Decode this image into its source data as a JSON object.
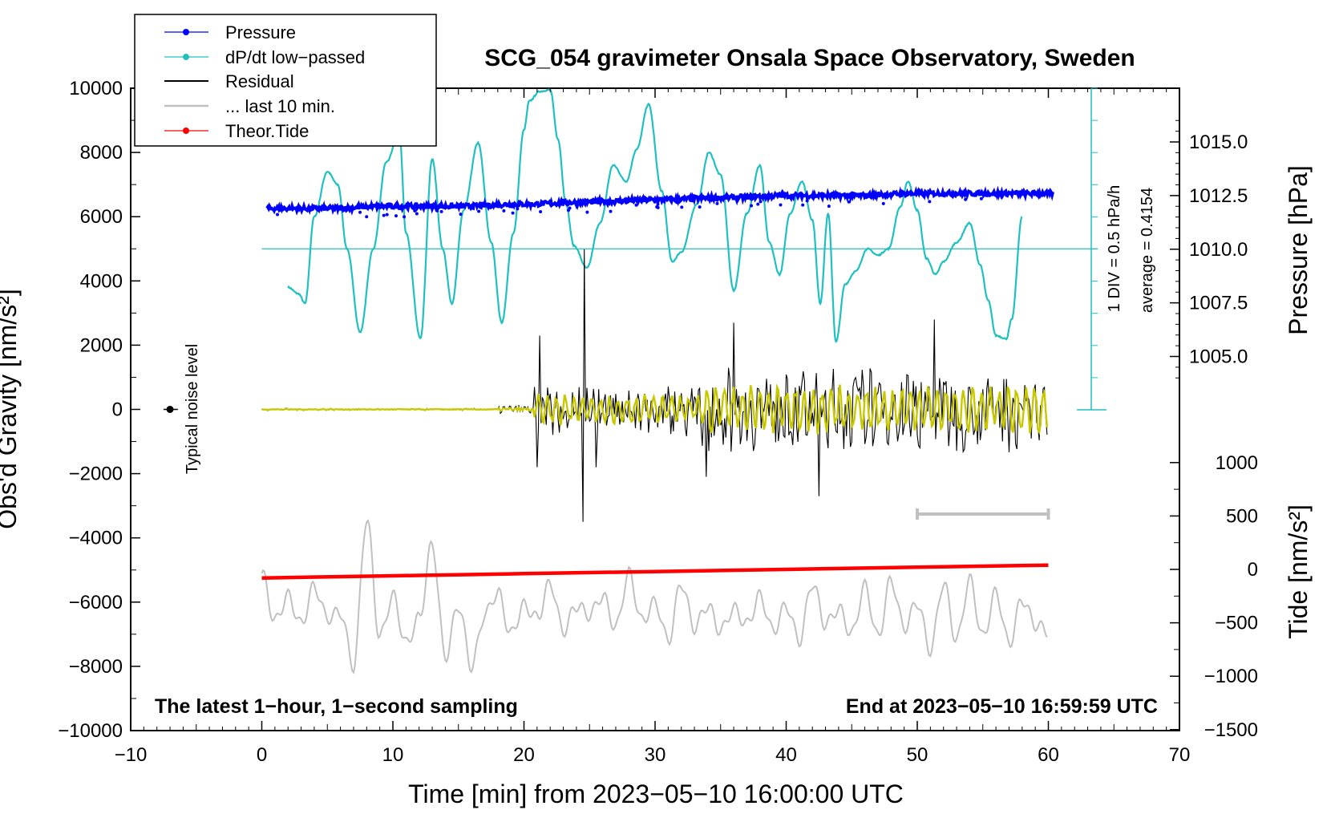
{
  "chart_data": {
    "type": "line",
    "title": "SCG_054 gravimeter Onsala Space Observatory, Sweden",
    "xlabel": "Time [min] from 2023−05−10 16:00:00 UTC",
    "ylabel_left": "Obs'd Gravity [nm/s²]",
    "ylabel_right_top": "Pressure [hPa]",
    "ylabel_right_bottom": "Tide [nm/s²]",
    "xlim": [
      -10,
      70
    ],
    "ylim_left": [
      -10000,
      10000
    ],
    "x_ticks": [
      "−10",
      "0",
      "10",
      "20",
      "30",
      "40",
      "50",
      "60",
      "70"
    ],
    "y_ticks_left": [
      "10000",
      "8000",
      "6000",
      "4000",
      "2000",
      "0",
      "−2000",
      "−4000",
      "−6000",
      "−8000",
      "−10000"
    ],
    "pressure_ticks": [
      "1015.0",
      "1012.5",
      "1010.0",
      "1007.5",
      "1005.0"
    ],
    "tide_ticks": [
      "1000",
      "500",
      "0",
      "−500",
      "−1000",
      "−1500"
    ],
    "legend": [
      "Pressure",
      "dP/dt low−passed",
      "Residual",
      "... last 10 min.",
      "Theor.Tide"
    ],
    "legend_position": "top-left",
    "annotations": {
      "div_note": "1 DIV = 0.5 hPa/h",
      "average_note": "average = 0.4154",
      "noise_label": "Typical noise level",
      "bottom_left": "The latest 1−hour, 1−second sampling",
      "bottom_right": "End at 2023−05−10 16:59:59 UTC"
    },
    "series": [
      {
        "name": "Pressure",
        "unit": "hPa",
        "x": [
          0,
          5,
          10,
          15,
          20,
          25,
          30,
          35,
          40,
          45,
          50,
          55,
          60
        ],
        "values": [
          1011.9,
          1011.9,
          1012.0,
          1012.0,
          1012.1,
          1012.2,
          1012.3,
          1012.4,
          1012.5,
          1012.5,
          1012.6,
          1012.6,
          1012.6
        ]
      },
      {
        "name": "dP/dt low−passed",
        "unit": "nm/s² (display)",
        "x": [
          2,
          2.8,
          3.3,
          4,
          5,
          5.8,
          6.5,
          7.5,
          8.5,
          9.5,
          10.5,
          11,
          12.1,
          13,
          13.8,
          14.5,
          15.4,
          16.5,
          17.5,
          18.3,
          19.2,
          20,
          20.4,
          21.2,
          22,
          22.6,
          23.2,
          23.8,
          24.8,
          25.8,
          26.8,
          27.8,
          28.6,
          29.5,
          30.5,
          31.3,
          32,
          33.2,
          34.1,
          35,
          36,
          37,
          38,
          38.7,
          39.5,
          40.3,
          41.2,
          42,
          42.6,
          43.2,
          43.8,
          44.5,
          45.3,
          46.2,
          47,
          47.8,
          48.7,
          49.3,
          50,
          50.7,
          51.4,
          52,
          53,
          54,
          54.8,
          55.4,
          56,
          56.8,
          57.2,
          58
        ],
        "values": [
          3800,
          3600,
          3300,
          6000,
          7400,
          7000,
          5000,
          2400,
          5000,
          7700,
          8600,
          5500,
          2200,
          7800,
          5000,
          3300,
          6200,
          8300,
          5200,
          2700,
          5500,
          8700,
          9600,
          9900,
          9950,
          8400,
          6400,
          5100,
          4400,
          5800,
          7600,
          7100,
          8100,
          9500,
          6800,
          4600,
          4900,
          6400,
          8000,
          7300,
          3700,
          6100,
          7600,
          5200,
          4200,
          6100,
          7100,
          5900,
          3300,
          6100,
          2100,
          3900,
          4300,
          5000,
          4800,
          5000,
          6300,
          7100,
          6200,
          4700,
          4200,
          4600,
          5200,
          5800,
          4500,
          3400,
          2300,
          2200,
          2800,
          6000
        ]
      },
      {
        "name": "Residual",
        "unit": "nm/s²",
        "x": [
          0,
          18,
          20.5,
          21,
          24.5,
          30,
          33,
          36,
          42.5,
          51,
          55,
          60
        ],
        "values": [
          0,
          0,
          0,
          -1800,
          -3500,
          -1000,
          -2200,
          2700,
          -2700,
          2800,
          -1500,
          -1300
        ]
      },
      {
        "name": "... last 10 min.",
        "unit": "nm/s² (display)",
        "x": [
          0,
          1,
          2,
          3,
          4,
          5,
          6,
          7,
          8,
          9,
          10,
          11,
          12,
          13,
          14,
          15,
          16,
          17,
          18,
          19,
          20,
          21,
          22,
          23,
          24,
          25,
          26,
          27,
          28,
          29,
          30,
          31,
          32,
          33,
          34,
          35,
          36,
          37,
          38,
          39,
          40,
          41,
          42,
          43,
          44,
          45,
          46,
          47,
          48,
          49,
          50,
          51,
          52,
          53,
          54,
          55,
          56,
          57,
          58,
          59,
          60
        ],
        "values": [
          -5100,
          -6600,
          -5800,
          -6700,
          -5500,
          -6500,
          -6300,
          -8000,
          -3400,
          -7100,
          -5800,
          -7300,
          -6500,
          -4200,
          -7700,
          -6100,
          -8000,
          -6400,
          -5700,
          -7000,
          -6100,
          -6500,
          -5400,
          -6900,
          -6100,
          -6400,
          -5800,
          -6800,
          -5100,
          -6600,
          -6000,
          -7200,
          -5400,
          -6800,
          -6100,
          -6900,
          -6200,
          -6700,
          -5800,
          -6900,
          -6100,
          -7200,
          -5400,
          -6700,
          -6200,
          -7000,
          -5500,
          -7100,
          -5300,
          -6800,
          -6000,
          -7500,
          -5400,
          -7200,
          -5300,
          -7100,
          -5700,
          -7300,
          -5900,
          -6700,
          -6900
        ]
      },
      {
        "name": "Theor.Tide",
        "unit": "nm/s²",
        "x": [
          0,
          10,
          20,
          30,
          40,
          50,
          60
        ],
        "values": [
          -80,
          -60,
          -40,
          -20,
          0,
          20,
          40
        ]
      }
    ],
    "noise_bar_minutes": [
      50,
      60
    ]
  },
  "colors": {
    "pressure": "#0000ff",
    "dpdt": "#20c0c0",
    "residual": "#000000",
    "lowpass": "#c8c800",
    "last10": "#c0c0c0",
    "tide": "#ff0000"
  }
}
